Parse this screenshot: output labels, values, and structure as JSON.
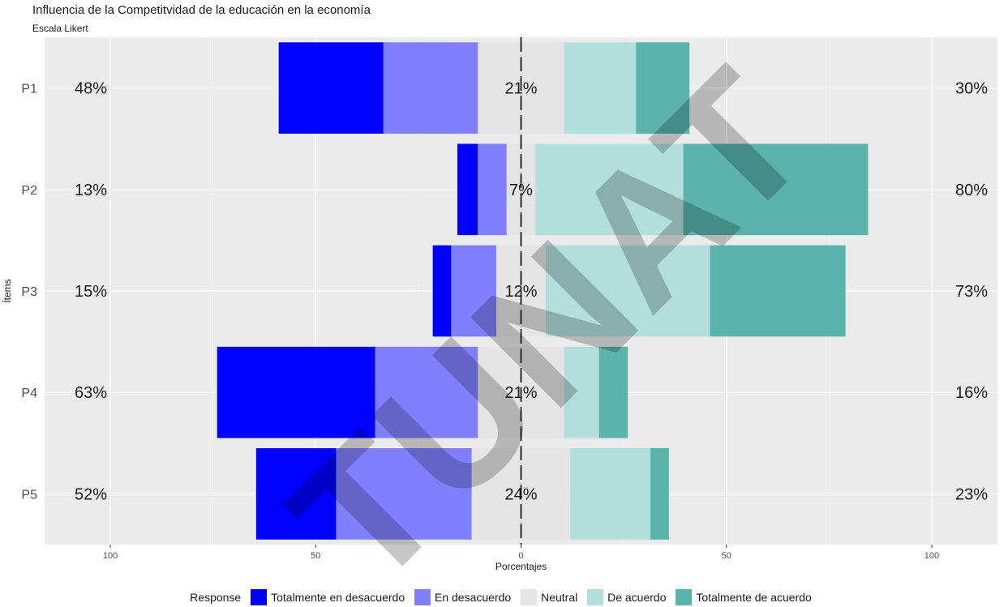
{
  "chart_data": {
    "type": "bar",
    "orientation": "horizontal-diverging",
    "title": "Influencia de la Competitvidad de la educación en la economía",
    "subtitle": "Escala Likert",
    "xlabel": "Porcentajes",
    "ylabel": "Ítems",
    "xlim": [
      -116,
      116
    ],
    "x_ticks": [
      -100,
      -50,
      0,
      50,
      100
    ],
    "x_tick_labels": [
      "100",
      "50",
      "0",
      "50",
      "100"
    ],
    "grid": true,
    "legend_title": "Response",
    "legend_position": "bottom",
    "categories": [
      "P1",
      "P2",
      "P3",
      "P4",
      "P5"
    ],
    "series": [
      {
        "name": "Totalmente en desacuerdo",
        "color": "#0000ff",
        "values": [
          25.5,
          5,
          4.5,
          38.5,
          19.5
        ]
      },
      {
        "name": "En desacuerdo",
        "color": "#8080ff",
        "values": [
          23,
          7,
          11,
          25,
          33
        ]
      },
      {
        "name": "Neutral",
        "color": "#e5e5e5",
        "values": [
          21,
          7,
          12,
          21,
          24
        ]
      },
      {
        "name": "De acuerdo",
        "color": "#b2dfdb",
        "values": [
          17.5,
          36,
          40,
          8.5,
          19.5
        ]
      },
      {
        "name": "Totalmente de acuerdo",
        "color": "#5ab4ac",
        "values": [
          13,
          45,
          33,
          7,
          4.5
        ]
      }
    ],
    "left_labels": [
      "48%",
      "13%",
      "15%",
      "63%",
      "52%"
    ],
    "center_labels": [
      "21%",
      "7%",
      "12%",
      "21%",
      "24%"
    ],
    "right_labels": [
      "30%",
      "80%",
      "73%",
      "16%",
      "23%"
    ]
  },
  "watermark": {
    "text": "TUNAT",
    "color": "#000000"
  }
}
